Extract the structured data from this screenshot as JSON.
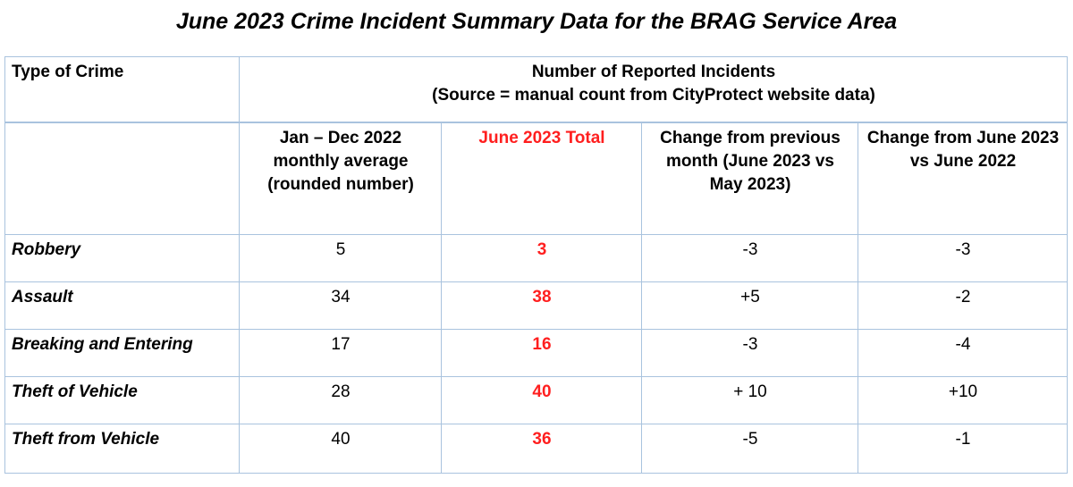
{
  "title": "June 2023 Crime Incident Summary Data for the BRAG Service Area",
  "table": {
    "type_header": "Type of Crime",
    "group_header_line1": "Number of Reported Incidents",
    "group_header_line2": "(Source = manual count from CityProtect website data)",
    "columns": [
      "Jan – Dec 2022 monthly average (rounded number)",
      "June 2023 Total",
      "Change from previous month (June 2023 vs May 2023)",
      "Change from June 2023 vs June 2022"
    ],
    "highlight_color": "#ff1f1f",
    "border_color": "#a9c3de",
    "rows": [
      {
        "crime": "Robbery",
        "avg_2022": "5",
        "june_2023": "3",
        "change_prev_month": "-3",
        "change_vs_june_2022": "-3"
      },
      {
        "crime": "Assault",
        "avg_2022": "34",
        "june_2023": "38",
        "change_prev_month": "+5",
        "change_vs_june_2022": "-2"
      },
      {
        "crime": "Breaking and Entering",
        "avg_2022": "17",
        "june_2023": "16",
        "change_prev_month": "-3",
        "change_vs_june_2022": "-4"
      },
      {
        "crime": "Theft of Vehicle",
        "avg_2022": "28",
        "june_2023": "40",
        "change_prev_month": "+ 10",
        "change_vs_june_2022": "+10"
      },
      {
        "crime": "Theft from Vehicle",
        "avg_2022": "40",
        "june_2023": "36",
        "change_prev_month": "-5",
        "change_vs_june_2022": "-1"
      }
    ]
  }
}
